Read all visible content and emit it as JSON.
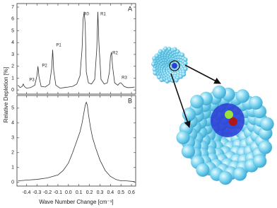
{
  "y_label": "Relative Depletion [%]",
  "x_label": "Wave Number Change [cm⁻¹]",
  "chart_data": [
    {
      "type": "line",
      "panel_label": "A",
      "annotations": [
        "P3",
        "P2",
        "P1",
        "R0",
        "R1",
        "R2",
        "R3"
      ],
      "x": [
        -0.48,
        -0.46,
        -0.44,
        -0.43,
        -0.42,
        -0.4,
        -0.36,
        -0.32,
        -0.3,
        -0.29,
        -0.28,
        -0.26,
        -0.22,
        -0.18,
        -0.16,
        -0.15,
        -0.14,
        -0.12,
        -0.08,
        -0.04,
        0,
        0.04,
        0.08,
        0.11,
        0.13,
        0.14,
        0.15,
        0.16,
        0.17,
        0.19,
        0.22,
        0.25,
        0.27,
        0.28,
        0.29,
        0.31,
        0.34,
        0.37,
        0.39,
        0.4,
        0.41,
        0.42,
        0.44,
        0.47,
        0.49,
        0.5,
        0.51,
        0.53,
        0.56,
        0.6,
        0.63
      ],
      "values": [
        0.4,
        0.2,
        0.3,
        0.5,
        0.3,
        0.15,
        0.2,
        0.4,
        1.2,
        2.0,
        1.1,
        0.3,
        0.25,
        0.5,
        1.8,
        3.4,
        1.6,
        0.4,
        0.15,
        0.2,
        0.25,
        0.3,
        0.5,
        1.2,
        3.5,
        6.0,
        6.6,
        5.5,
        1.5,
        0.6,
        0.5,
        0.9,
        3.5,
        6.6,
        4.0,
        0.9,
        0.5,
        0.6,
        1.5,
        2.8,
        3.2,
        2.0,
        0.6,
        0.4,
        0.6,
        0.6,
        0.5,
        0.3,
        0.2,
        0.2,
        0.25
      ],
      "color": "#333333",
      "xlim": [
        -0.49,
        0.64
      ],
      "xticks": [
        -0.4,
        -0.3,
        -0.2,
        -0.1,
        {
          "value": 0,
          "label": "0.0"
        },
        0.1,
        0.2,
        0.3,
        0.4,
        0.5,
        0.6
      ],
      "ylim": [
        -0.35,
        7.3
      ],
      "yticks": [
        0,
        1,
        2,
        3,
        4,
        5,
        6,
        7
      ]
    },
    {
      "type": "line",
      "panel_label": "B",
      "x": [
        -0.48,
        -0.4,
        -0.3,
        -0.2,
        -0.1,
        -0.05,
        0,
        0.04,
        0.08,
        0.11,
        0.13,
        0.15,
        0.16,
        0.17,
        0.18,
        0.19,
        0.21,
        0.23,
        0.26,
        0.3,
        0.35,
        0.4,
        0.45,
        0.5,
        0.55,
        0.63
      ],
      "values": [
        0.1,
        0.15,
        0.2,
        0.3,
        0.5,
        0.8,
        1.3,
        2.0,
        2.8,
        3.4,
        4.0,
        4.8,
        5.2,
        5.4,
        5.2,
        4.6,
        3.7,
        3.0,
        2.3,
        1.5,
        0.8,
        0.4,
        0.2,
        0.1,
        0.1,
        0.05
      ],
      "color": "#333333",
      "xlim": [
        -0.49,
        0.64
      ],
      "xticks": [
        -0.4,
        -0.3,
        -0.2,
        -0.1,
        {
          "value": 0,
          "label": "0.0"
        },
        0.1,
        0.2,
        0.3,
        0.4,
        0.5,
        0.6
      ],
      "ylim": [
        -0.25,
        5.85
      ],
      "yticks": [
        0,
        1,
        2,
        3,
        4,
        5
      ]
    }
  ]
}
